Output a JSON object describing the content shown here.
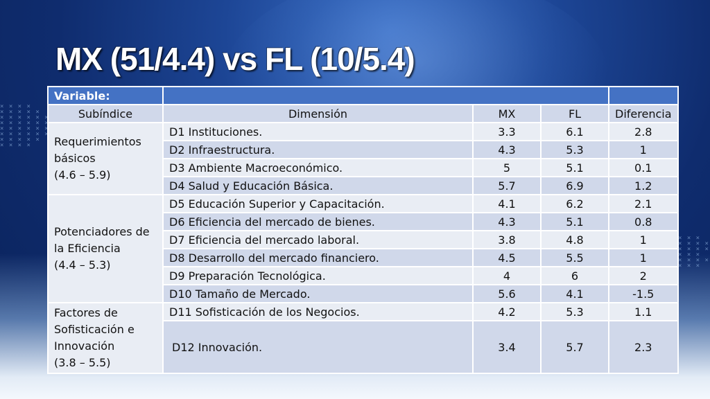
{
  "title": "MX (51/4.4) vs FL (10/5.4)",
  "header": {
    "variable_label": "Variable:"
  },
  "columns": [
    "Subíndice",
    "Dimensión",
    "MX",
    "FL",
    "Diferencia"
  ],
  "groups": [
    {
      "lines": [
        "Requerimientos",
        "básicos",
        "(4.6 – 5.9)"
      ]
    },
    {
      "lines": [
        "Potenciadores de",
        "la Eficiencia",
        "(4.4 – 5.3)"
      ]
    },
    {
      "lines": [
        "Factores de",
        "Sofisticación e",
        "Innovación",
        "(3.8 – 5.5)"
      ]
    }
  ],
  "rows": [
    {
      "dimension": "D1 Instituciones.",
      "mx": "3.3",
      "fl": "6.1",
      "diff": "2.8"
    },
    {
      "dimension": "D2 Infraestructura.",
      "mx": "4.3",
      "fl": "5.3",
      "diff": "1"
    },
    {
      "dimension": "D3 Ambiente Macroeconómico.",
      "mx": "5",
      "fl": "5.1",
      "diff": "0.1"
    },
    {
      "dimension": "D4 Salud y Educación Básica.",
      "mx": "5.7",
      "fl": "6.9",
      "diff": "1.2"
    },
    {
      "dimension": "D5 Educación Superior y Capacitación.",
      "mx": "4.1",
      "fl": "6.2",
      "diff": "2.1"
    },
    {
      "dimension": "D6 Eficiencia del mercado de bienes.",
      "mx": "4.3",
      "fl": "5.1",
      "diff": "0.8"
    },
    {
      "dimension": "D7 Eficiencia del mercado laboral.",
      "mx": "3.8",
      "fl": "4.8",
      "diff": "1"
    },
    {
      "dimension": "D8 Desarrollo del mercado financiero.",
      "mx": "4.5",
      "fl": "5.5",
      "diff": "1"
    },
    {
      "dimension": "D9 Preparación Tecnológica.",
      "mx": "4",
      "fl": "6",
      "diff": "2"
    },
    {
      "dimension": "D10 Tamaño de Mercado.",
      "mx": "5.6",
      "fl": "4.1",
      "diff": "-1.5"
    },
    {
      "dimension": "D11 Sofisticación de los Negocios.",
      "mx": "4.2",
      "fl": "5.3",
      "diff": "1.1"
    },
    {
      "dimension": "D12 Innovación.",
      "mx": "3.4",
      "fl": "5.7",
      "diff": "2.3"
    }
  ]
}
